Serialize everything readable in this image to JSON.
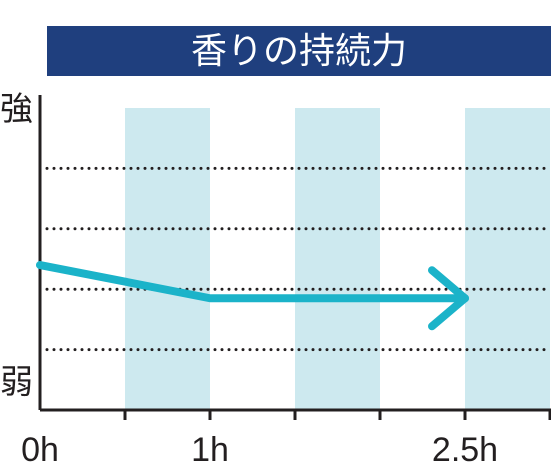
{
  "chart_data": {
    "type": "line",
    "title": "香りの持続力",
    "y_axis_labels": {
      "top": "強",
      "bottom": "弱"
    },
    "x_ticks": [
      {
        "value": 0,
        "label": "0h"
      },
      {
        "value": 1,
        "label": "1h"
      },
      {
        "value": 2.5,
        "label": "2.5h"
      }
    ],
    "xlim": [
      0,
      3
    ],
    "ylim": [
      0,
      5
    ],
    "grid": {
      "horizontal_dotted": [
        1,
        2,
        3,
        4
      ]
    },
    "shaded_bands": [
      [
        0.5,
        1.0
      ],
      [
        1.5,
        2.0
      ],
      [
        2.5,
        3.0
      ]
    ],
    "series": [
      {
        "x": [
          0,
          1,
          2.5
        ],
        "y": [
          2.4,
          1.85,
          1.85
        ],
        "arrow_end": true
      }
    ],
    "colors": {
      "title_bg": "#1f3f7e",
      "band": "#cde9ef",
      "line": "#1bb3c9",
      "axis": "#231f20",
      "text": "#231f20"
    }
  }
}
